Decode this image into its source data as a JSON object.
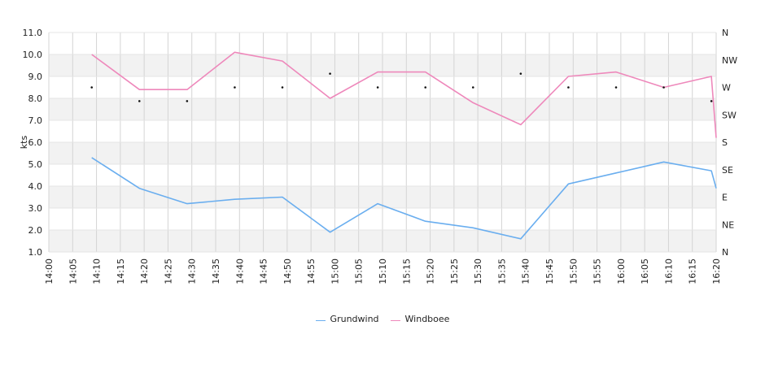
{
  "chart_data": {
    "type": "line",
    "xlabel": "",
    "ylabel": "kts",
    "ylim": [
      1.0,
      11.0
    ],
    "y_ticks": [
      "1.0",
      "2.0",
      "3.0",
      "4.0",
      "5.0",
      "6.0",
      "7.0",
      "8.0",
      "9.0",
      "10.0",
      "11.0"
    ],
    "x_ticks": [
      "14:00",
      "14:05",
      "14:10",
      "14:15",
      "14:20",
      "14:25",
      "14:30",
      "14:35",
      "14:40",
      "14:45",
      "14:50",
      "14:55",
      "15:00",
      "15:05",
      "15:10",
      "15:15",
      "15:20",
      "15:25",
      "15:30",
      "15:35",
      "15:40",
      "15:45",
      "15:50",
      "15:55",
      "16:00",
      "16:05",
      "16:10",
      "16:15",
      "16:20"
    ],
    "right_axis_labels": [
      "N",
      "NE",
      "E",
      "SE",
      "S",
      "SW",
      "W",
      "NW",
      "N"
    ],
    "grid": true,
    "legend_position": "bottom",
    "series": [
      {
        "name": "Grundwind",
        "color": "#6aaeef",
        "x": [
          "14:09",
          "14:19",
          "14:29",
          "14:39",
          "14:49",
          "14:59",
          "15:09",
          "15:19",
          "15:29",
          "15:39",
          "15:49",
          "15:59",
          "16:09",
          "16:19",
          "16:20"
        ],
        "values": [
          5.3,
          3.9,
          3.2,
          3.4,
          3.5,
          1.9,
          3.2,
          2.4,
          2.1,
          1.6,
          4.1,
          4.6,
          5.1,
          4.7,
          3.9
        ]
      },
      {
        "name": "Windboee",
        "color": "#ee88bb",
        "x": [
          "14:09",
          "14:19",
          "14:29",
          "14:39",
          "14:49",
          "14:59",
          "15:09",
          "15:19",
          "15:29",
          "15:39",
          "15:49",
          "15:59",
          "16:09",
          "16:19",
          "16:20"
        ],
        "values": [
          10.0,
          8.4,
          8.4,
          10.1,
          9.7,
          8.0,
          9.2,
          9.2,
          7.8,
          6.8,
          9.0,
          9.2,
          8.5,
          9.0,
          6.2
        ]
      }
    ],
    "direction_markers": [
      {
        "x": "14:09",
        "dir": "W"
      },
      {
        "x": "14:19",
        "dir": "WSW"
      },
      {
        "x": "14:29",
        "dir": "WSW"
      },
      {
        "x": "14:39",
        "dir": "W"
      },
      {
        "x": "14:49",
        "dir": "W"
      },
      {
        "x": "14:59",
        "dir": "WNW"
      },
      {
        "x": "15:09",
        "dir": "W"
      },
      {
        "x": "15:19",
        "dir": "W"
      },
      {
        "x": "15:29",
        "dir": "W"
      },
      {
        "x": "15:39",
        "dir": "WNW"
      },
      {
        "x": "15:49",
        "dir": "W"
      },
      {
        "x": "15:59",
        "dir": "W"
      },
      {
        "x": "16:09",
        "dir": "W"
      },
      {
        "x": "16:19",
        "dir": "WSW"
      }
    ],
    "direction_scale": [
      "N",
      "NNE",
      "NE",
      "ENE",
      "E",
      "ESE",
      "SE",
      "SSE",
      "S",
      "SSW",
      "SW",
      "WSW",
      "W",
      "WNW",
      "NW",
      "NNW",
      "N"
    ]
  }
}
